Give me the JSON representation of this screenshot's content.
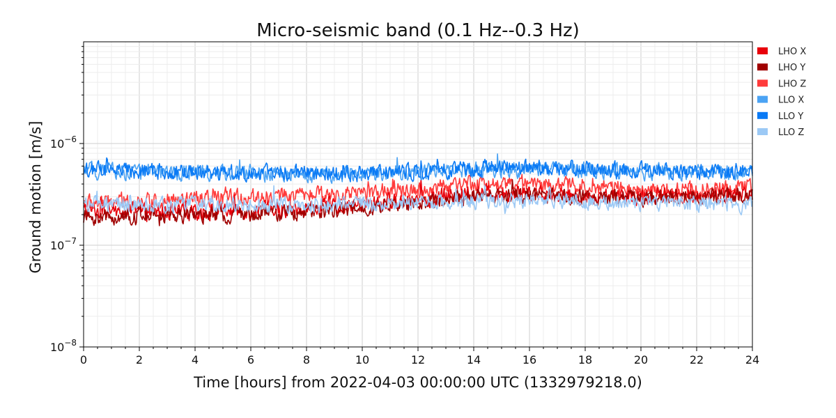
{
  "chart_data": {
    "type": "line",
    "title": "Micro-seismic band (0.1 Hz--0.3 Hz)",
    "xlabel": "Time [hours] from 2022-04-03 00:00:00 UTC (1332979218.0)",
    "ylabel": "Ground motion [m/s]",
    "xscale": "linear",
    "yscale": "log",
    "xlim": [
      0,
      24
    ],
    "ylim": [
      1e-08,
      1e-05
    ],
    "x_ticks": [
      0,
      2,
      4,
      6,
      8,
      10,
      12,
      14,
      16,
      18,
      20,
      22,
      24
    ],
    "x_tick_labels": [
      "0",
      "2",
      "4",
      "6",
      "8",
      "10",
      "12",
      "14",
      "16",
      "18",
      "20",
      "22",
      "24"
    ],
    "y_ticks": [
      1e-08,
      1e-07,
      1e-06
    ],
    "y_tick_labels": [
      {
        "base": "10",
        "exp": "−8"
      },
      {
        "base": "10",
        "exp": "−7"
      },
      {
        "base": "10",
        "exp": "−6"
      }
    ],
    "grid": true,
    "legend_position": "upper-right outside",
    "x": [
      0,
      2,
      4,
      6,
      8,
      10,
      12,
      14,
      16,
      18,
      20,
      22,
      24
    ],
    "series": [
      {
        "name": "LHO X",
        "color": "#e8000b",
        "values": [
          2.2e-07,
          2.1e-07,
          2.1e-07,
          2.2e-07,
          2.3e-07,
          2.5e-07,
          2.8e-07,
          3.3e-07,
          3.3e-07,
          3e-07,
          3e-07,
          3.1e-07,
          3.2e-07
        ]
      },
      {
        "name": "LHO Y",
        "color": "#a00000",
        "values": [
          1.9e-07,
          1.9e-07,
          2e-07,
          2e-07,
          2.1e-07,
          2.3e-07,
          2.6e-07,
          3e-07,
          3.1e-07,
          2.9e-07,
          2.9e-07,
          3e-07,
          3e-07
        ]
      },
      {
        "name": "LHO Z",
        "color": "#ff3b3b",
        "values": [
          2.6e-07,
          2.7e-07,
          2.8e-07,
          3e-07,
          3.1e-07,
          3.3e-07,
          3.6e-07,
          4e-07,
          4.1e-07,
          3.8e-07,
          3.6e-07,
          3.6e-07,
          3.7e-07
        ]
      },
      {
        "name": "LLO X",
        "color": "#4ba3f4",
        "values": [
          5.4e-07,
          5.2e-07,
          5.2e-07,
          5.1e-07,
          5e-07,
          5e-07,
          5.2e-07,
          5.5e-07,
          5.6e-07,
          5.5e-07,
          5.3e-07,
          5.2e-07,
          5.2e-07
        ]
      },
      {
        "name": "LLO Y",
        "color": "#0a7af5",
        "values": [
          5.5e-07,
          5.3e-07,
          5.3e-07,
          5.2e-07,
          5.1e-07,
          5.1e-07,
          5.3e-07,
          5.7e-07,
          5.8e-07,
          5.6e-07,
          5.4e-07,
          5.3e-07,
          5.3e-07
        ]
      },
      {
        "name": "LLO Z",
        "color": "#9cc9f5",
        "values": [
          2.6e-07,
          2.5e-07,
          2.5e-07,
          2.5e-07,
          2.5e-07,
          2.5e-07,
          2.6e-07,
          2.7e-07,
          2.8e-07,
          2.7e-07,
          2.6e-07,
          2.5e-07,
          2.5e-07
        ]
      }
    ]
  }
}
